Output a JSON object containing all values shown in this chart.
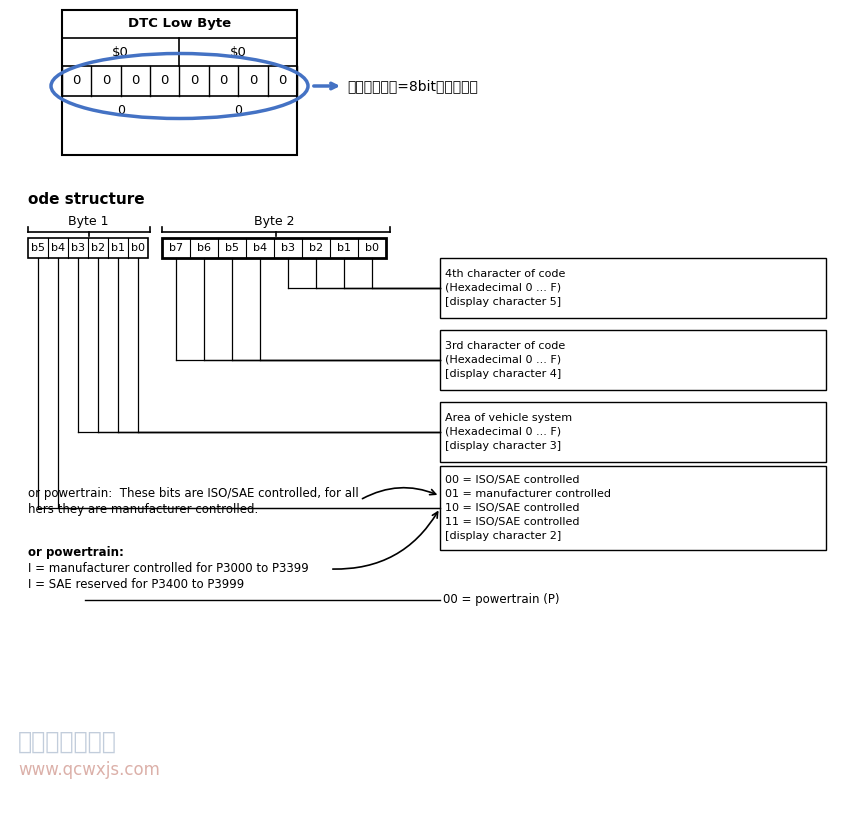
{
  "bg_color": "#ffffff",
  "top_table": {
    "title": "DTC Low Byte",
    "row1": [
      "$0",
      "$0"
    ],
    "row2": [
      "0",
      "0",
      "0",
      "0",
      "0",
      "0",
      "0",
      "0"
    ],
    "ellipse_color": "#4472c4"
  },
  "annotation_text": "最后一个字节=8bit是错误类型",
  "section_title": "ode structure",
  "byte1_label": "Byte 1",
  "byte2_label": "Byte 2",
  "bit_labels_left": [
    "b5",
    "b4",
    "b3",
    "b2",
    "b1",
    "b0"
  ],
  "bit_labels_right": [
    "b7",
    "b6",
    "b5",
    "b4",
    "b3",
    "b2",
    "b1",
    "b0"
  ],
  "desc_boxes": [
    {
      "text": "4th character of code\n(Hexadecimal 0 ... F)\n[display character 5]"
    },
    {
      "text": "3rd character of code\n(Hexadecimal 0 ... F)\n[display character 4]"
    },
    {
      "text": "Area of vehicle system\n(Hexadecimal 0 ... F)\n[display character 3]"
    },
    {
      "text": "00 = ISO/SAE controlled\n01 = manufacturer controlled\n10 = ISO/SAE controlled\n11 = ISO/SAE controlled\n[display character 2]"
    }
  ],
  "note1_line1": "or powertrain:  These bits are ISO/SAE controlled, for all",
  "note1_line2": "hers they are manufacturer controlled.",
  "note2_title": "or powertrain:",
  "note2_lines": [
    "I = manufacturer controlled for P3000 to P3399",
    "I = SAE reserved for P3400 to P3999"
  ],
  "bottom_line_text": "00 = powertrain (P)",
  "watermark_line1": "汽车维修技术网",
  "watermark_line2": "www.qcwxjs.com"
}
